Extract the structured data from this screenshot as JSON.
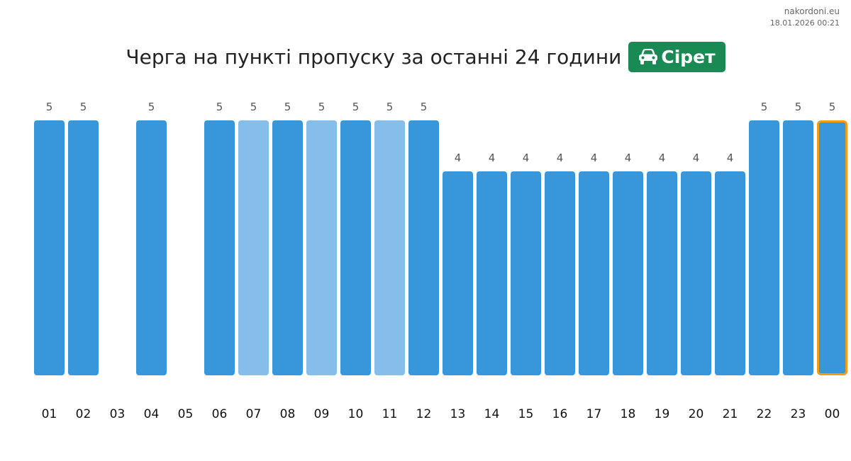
{
  "header": {
    "site": "nakordoni.eu",
    "timestamp": "18.01.2026 00:21"
  },
  "title": {
    "text": "Черга на пункті пропуску за останні 24 години",
    "badge_label": "Сірет",
    "badge_icon": "car-icon",
    "badge_color": "#1a8a54"
  },
  "colors": {
    "bar": "#3896da",
    "bar_light": "#85bfe9",
    "highlight_border": "#f39c12",
    "value_label": "#555555",
    "category_label": "#111111"
  },
  "chart_data": {
    "type": "bar",
    "title": "Черга на пункті пропуску за останні 24 години",
    "categories": [
      "01",
      "02",
      "03",
      "04",
      "05",
      "06",
      "07",
      "08",
      "09",
      "10",
      "11",
      "12",
      "13",
      "14",
      "15",
      "16",
      "17",
      "18",
      "19",
      "20",
      "21",
      "22",
      "23",
      "00"
    ],
    "values": [
      5,
      5,
      null,
      5,
      null,
      5,
      5,
      5,
      5,
      5,
      5,
      5,
      4,
      4,
      4,
      4,
      4,
      4,
      4,
      4,
      4,
      5,
      5,
      5
    ],
    "light_bars": [
      "07",
      "09",
      "11"
    ],
    "highlighted": "00",
    "ylim": [
      0,
      5
    ],
    "grid": false,
    "legend": "none"
  }
}
